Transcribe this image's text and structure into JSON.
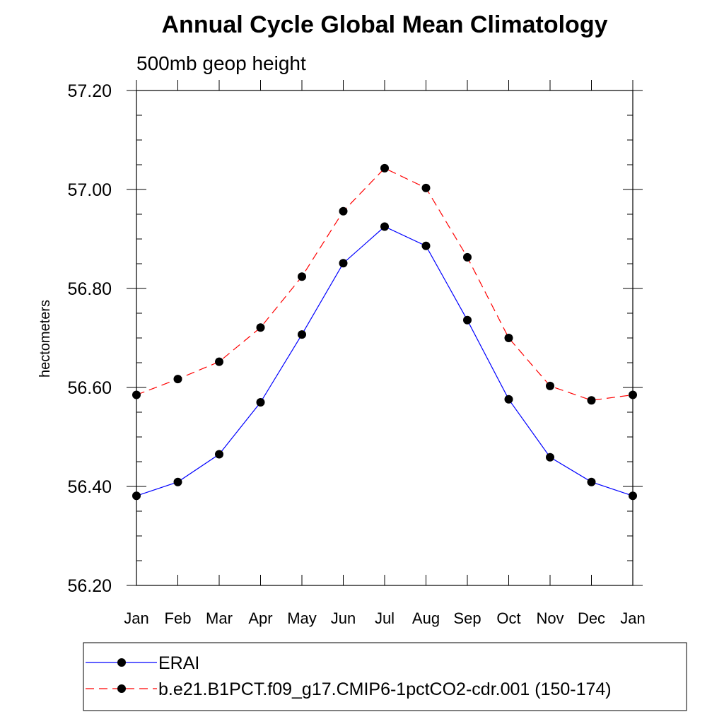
{
  "chart_data": {
    "type": "line",
    "title": "Annual Cycle Global Mean Climatology",
    "subtitle": "500mb geop height",
    "xlabel": "",
    "ylabel": "hectometers",
    "categories": [
      "Jan",
      "Feb",
      "Mar",
      "Apr",
      "May",
      "Jun",
      "Jul",
      "Aug",
      "Sep",
      "Oct",
      "Nov",
      "Dec",
      "Jan"
    ],
    "y_ticks": [
      "57.20",
      "57.00",
      "56.80",
      "56.60",
      "56.40",
      "56.20"
    ],
    "ylim": [
      56.2,
      57.2
    ],
    "grid": false,
    "legend_placement": "bottom",
    "series": [
      {
        "name": "ERAI",
        "color": "#0000ff",
        "line_style": "solid",
        "marker": "filled-circle",
        "values": [
          56.381,
          56.409,
          56.465,
          56.57,
          56.707,
          56.851,
          56.925,
          56.886,
          56.736,
          56.576,
          56.459,
          56.409,
          56.381
        ]
      },
      {
        "name": "b.e21.B1PCT.f09_g17.CMIP6-1pctCO2-cdr.001 (150-174)",
        "color": "#ff0000",
        "line_style": "dashed",
        "marker": "filled-circle",
        "values": [
          56.585,
          56.617,
          56.652,
          56.721,
          56.824,
          56.956,
          57.043,
          57.003,
          56.863,
          56.7,
          56.603,
          56.574,
          56.585
        ]
      }
    ]
  }
}
